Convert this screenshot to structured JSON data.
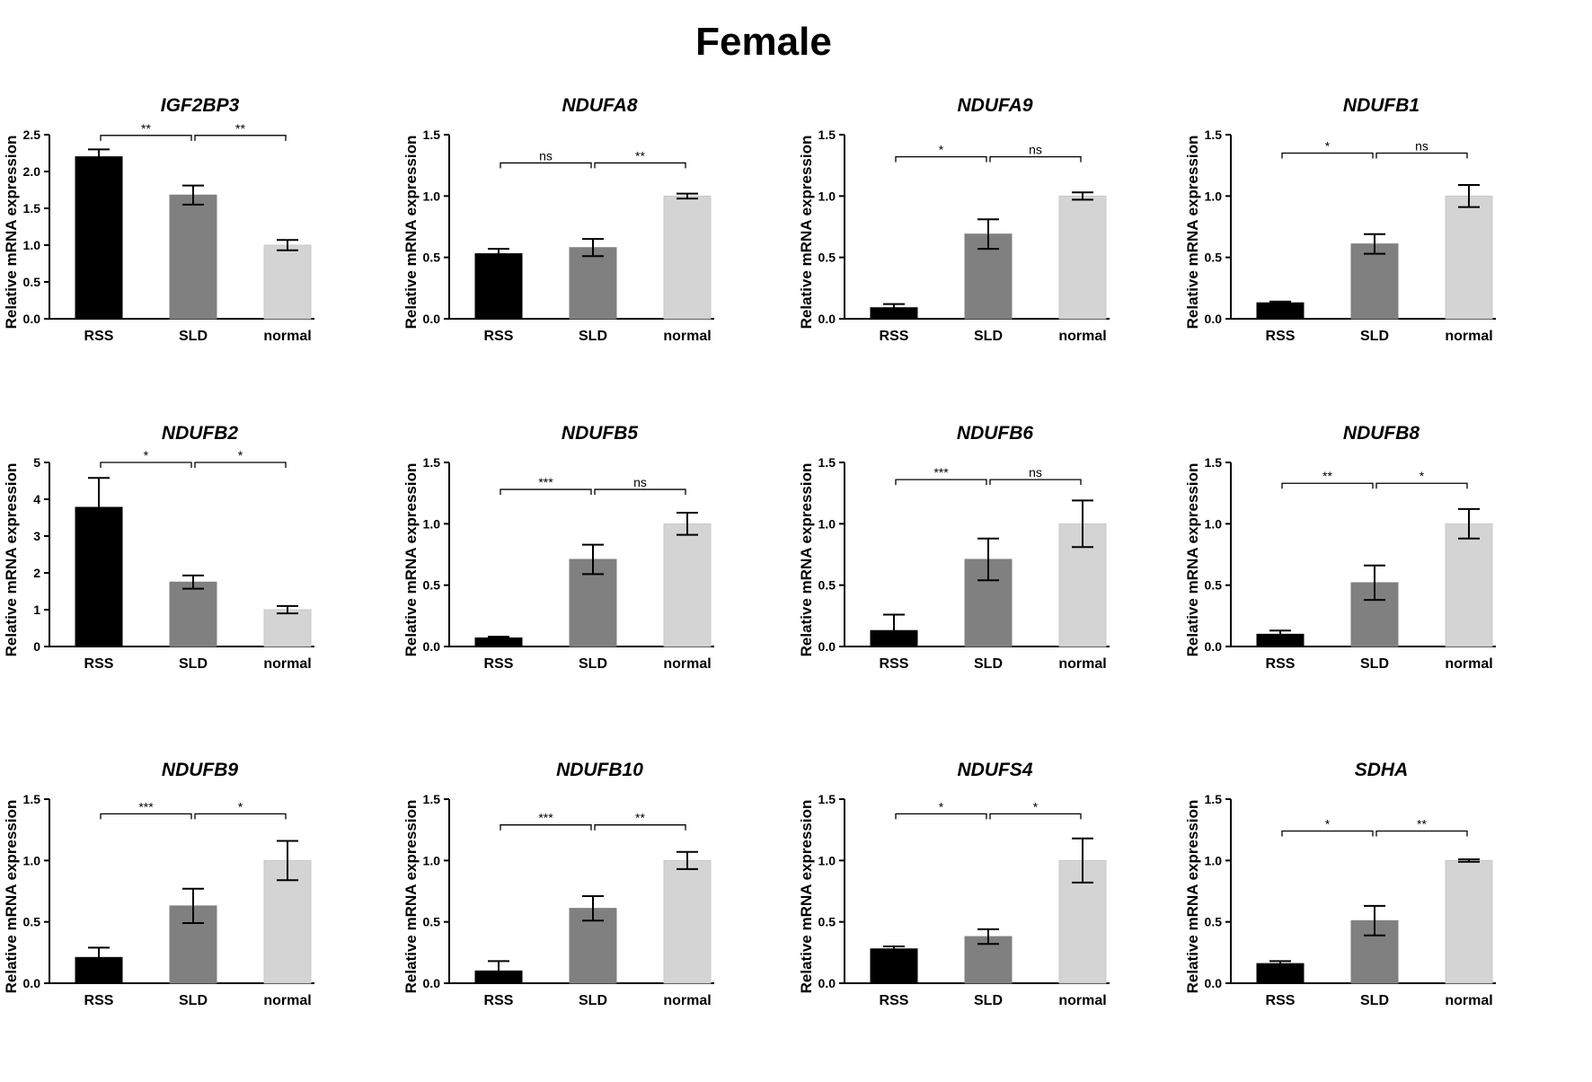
{
  "figure": {
    "title": "Female"
  },
  "chart_data": [
    {
      "type": "bar",
      "title": "IGF2BP3",
      "ylabel": "Relative mRNA expression",
      "categories": [
        "RSS",
        "SLD",
        "normal"
      ],
      "values": [
        2.2,
        1.68,
        1.0
      ],
      "errors": [
        0.1,
        0.13,
        0.07
      ],
      "colors": [
        "#000000",
        "#808080",
        "#d4d4d4"
      ],
      "ylim": [
        0,
        2.5
      ],
      "yticks": [
        "0.0",
        "0.5",
        "1.0",
        "1.5",
        "2.0",
        "2.5"
      ],
      "ytick_values": [
        0,
        0.5,
        1.0,
        1.5,
        2.0,
        2.5
      ],
      "significance": [
        {
          "from": 0,
          "to": 1,
          "label": "**",
          "y": 2.49
        },
        {
          "from": 1,
          "to": 2,
          "label": "**",
          "y": 2.49
        }
      ]
    },
    {
      "type": "bar",
      "title": "NDUFA8",
      "ylabel": "Relative mRNA expression",
      "categories": [
        "RSS",
        "SLD",
        "normal"
      ],
      "values": [
        0.53,
        0.58,
        1.0
      ],
      "errors": [
        0.04,
        0.07,
        0.02
      ],
      "colors": [
        "#000000",
        "#808080",
        "#d4d4d4"
      ],
      "ylim": [
        0,
        1.5
      ],
      "yticks": [
        "0.0",
        "0.5",
        "1.0",
        "1.5"
      ],
      "ytick_values": [
        0,
        0.5,
        1.0,
        1.5
      ],
      "significance": [
        {
          "from": 0,
          "to": 1,
          "label": "ns",
          "y": 1.27
        },
        {
          "from": 1,
          "to": 2,
          "label": "**",
          "y": 1.27
        }
      ]
    },
    {
      "type": "bar",
      "title": "NDUFA9",
      "ylabel": "Relative mRNA expression",
      "categories": [
        "RSS",
        "SLD",
        "normal"
      ],
      "values": [
        0.09,
        0.69,
        1.0
      ],
      "errors": [
        0.03,
        0.12,
        0.03
      ],
      "colors": [
        "#000000",
        "#808080",
        "#d4d4d4"
      ],
      "ylim": [
        0,
        1.5
      ],
      "yticks": [
        "0.0",
        "0.5",
        "1.0",
        "1.5"
      ],
      "ytick_values": [
        0,
        0.5,
        1.0,
        1.5
      ],
      "significance": [
        {
          "from": 0,
          "to": 1,
          "label": "*",
          "y": 1.32
        },
        {
          "from": 1,
          "to": 2,
          "label": "ns",
          "y": 1.32
        }
      ]
    },
    {
      "type": "bar",
      "title": "NDUFB1",
      "ylabel": "Relative mRNA expression",
      "categories": [
        "RSS",
        "SLD",
        "normal"
      ],
      "values": [
        0.13,
        0.61,
        1.0
      ],
      "errors": [
        0.01,
        0.08,
        0.09
      ],
      "colors": [
        "#000000",
        "#808080",
        "#d4d4d4"
      ],
      "ylim": [
        0,
        1.5
      ],
      "yticks": [
        "0.0",
        "0.5",
        "1.0",
        "1.5"
      ],
      "ytick_values": [
        0,
        0.5,
        1.0,
        1.5
      ],
      "significance": [
        {
          "from": 0,
          "to": 1,
          "label": "*",
          "y": 1.35
        },
        {
          "from": 1,
          "to": 2,
          "label": "ns",
          "y": 1.35
        }
      ]
    },
    {
      "type": "bar",
      "title": "NDUFB2",
      "ylabel": "Relative mRNA expression",
      "categories": [
        "RSS",
        "SLD",
        "normal"
      ],
      "values": [
        3.78,
        1.75,
        1.0
      ],
      "errors": [
        0.8,
        0.18,
        0.1
      ],
      "colors": [
        "#000000",
        "#808080",
        "#d4d4d4"
      ],
      "ylim": [
        0,
        5
      ],
      "yticks": [
        "0",
        "1",
        "2",
        "3",
        "4",
        "5"
      ],
      "ytick_values": [
        0,
        1,
        2,
        3,
        4,
        5
      ],
      "significance": [
        {
          "from": 0,
          "to": 1,
          "label": "*",
          "y": 5.0
        },
        {
          "from": 1,
          "to": 2,
          "label": "*",
          "y": 5.0
        }
      ]
    },
    {
      "type": "bar",
      "title": "NDUFB5",
      "ylabel": "Relative mRNA expression",
      "categories": [
        "RSS",
        "SLD",
        "normal"
      ],
      "values": [
        0.07,
        0.71,
        1.0
      ],
      "errors": [
        0.01,
        0.12,
        0.09
      ],
      "colors": [
        "#000000",
        "#808080",
        "#d4d4d4"
      ],
      "ylim": [
        0,
        1.5
      ],
      "yticks": [
        "0.0",
        "0.5",
        "1.0",
        "1.5"
      ],
      "ytick_values": [
        0,
        0.5,
        1.0,
        1.5
      ],
      "significance": [
        {
          "from": 0,
          "to": 1,
          "label": "***",
          "y": 1.28
        },
        {
          "from": 1,
          "to": 2,
          "label": "ns",
          "y": 1.28
        }
      ]
    },
    {
      "type": "bar",
      "title": "NDUFB6",
      "ylabel": "Relative mRNA expression",
      "categories": [
        "RSS",
        "SLD",
        "normal"
      ],
      "values": [
        0.13,
        0.71,
        1.0
      ],
      "errors": [
        0.13,
        0.17,
        0.19
      ],
      "colors": [
        "#000000",
        "#808080",
        "#d4d4d4"
      ],
      "ylim": [
        0,
        1.5
      ],
      "yticks": [
        "0.0",
        "0.5",
        "1.0",
        "1.5"
      ],
      "ytick_values": [
        0,
        0.5,
        1.0,
        1.5
      ],
      "significance": [
        {
          "from": 0,
          "to": 1,
          "label": "***",
          "y": 1.36
        },
        {
          "from": 1,
          "to": 2,
          "label": "ns",
          "y": 1.36
        }
      ]
    },
    {
      "type": "bar",
      "title": "NDUFB8",
      "ylabel": "Relative mRNA expression",
      "categories": [
        "RSS",
        "SLD",
        "normal"
      ],
      "values": [
        0.1,
        0.52,
        1.0
      ],
      "errors": [
        0.03,
        0.14,
        0.12
      ],
      "colors": [
        "#000000",
        "#808080",
        "#d4d4d4"
      ],
      "ylim": [
        0,
        1.5
      ],
      "yticks": [
        "0.0",
        "0.5",
        "1.0",
        "1.5"
      ],
      "ytick_values": [
        0,
        0.5,
        1.0,
        1.5
      ],
      "significance": [
        {
          "from": 0,
          "to": 1,
          "label": "**",
          "y": 1.33
        },
        {
          "from": 1,
          "to": 2,
          "label": "*",
          "y": 1.33
        }
      ]
    },
    {
      "type": "bar",
      "title": "NDUFB9",
      "ylabel": "Relative mRNA expression",
      "categories": [
        "RSS",
        "SLD",
        "normal"
      ],
      "values": [
        0.21,
        0.63,
        1.0
      ],
      "errors": [
        0.08,
        0.14,
        0.16
      ],
      "colors": [
        "#000000",
        "#808080",
        "#d4d4d4"
      ],
      "ylim": [
        0,
        1.5
      ],
      "yticks": [
        "0.0",
        "0.5",
        "1.0",
        "1.5"
      ],
      "ytick_values": [
        0,
        0.5,
        1.0,
        1.5
      ],
      "significance": [
        {
          "from": 0,
          "to": 1,
          "label": "***",
          "y": 1.38
        },
        {
          "from": 1,
          "to": 2,
          "label": "*",
          "y": 1.38
        }
      ]
    },
    {
      "type": "bar",
      "title": "NDUFB10",
      "ylabel": "Relative mRNA expression",
      "categories": [
        "RSS",
        "SLD",
        "normal"
      ],
      "values": [
        0.1,
        0.61,
        1.0
      ],
      "errors": [
        0.08,
        0.1,
        0.07
      ],
      "colors": [
        "#000000",
        "#808080",
        "#d4d4d4"
      ],
      "ylim": [
        0,
        1.5
      ],
      "yticks": [
        "0.0",
        "0.5",
        "1.0",
        "1.5"
      ],
      "ytick_values": [
        0,
        0.5,
        1.0,
        1.5
      ],
      "significance": [
        {
          "from": 0,
          "to": 1,
          "label": "***",
          "y": 1.29
        },
        {
          "from": 1,
          "to": 2,
          "label": "**",
          "y": 1.29
        }
      ]
    },
    {
      "type": "bar",
      "title": "NDUFS4",
      "ylabel": "Relative mRNA expression",
      "categories": [
        "RSS",
        "SLD",
        "normal"
      ],
      "values": [
        0.28,
        0.38,
        1.0
      ],
      "errors": [
        0.02,
        0.06,
        0.18
      ],
      "colors": [
        "#000000",
        "#808080",
        "#d4d4d4"
      ],
      "ylim": [
        0,
        1.5
      ],
      "yticks": [
        "0.0",
        "0.5",
        "1.0",
        "1.5"
      ],
      "ytick_values": [
        0,
        0.5,
        1.0,
        1.5
      ],
      "significance": [
        {
          "from": 0,
          "to": 1,
          "label": "*",
          "y": 1.38
        },
        {
          "from": 1,
          "to": 2,
          "label": "*",
          "y": 1.38
        }
      ]
    },
    {
      "type": "bar",
      "title": "SDHA",
      "ylabel": "Relative mRNA expression",
      "categories": [
        "RSS",
        "SLD",
        "normal"
      ],
      "values": [
        0.16,
        0.51,
        1.0
      ],
      "errors": [
        0.02,
        0.12,
        0.01
      ],
      "colors": [
        "#000000",
        "#808080",
        "#d4d4d4"
      ],
      "ylim": [
        0,
        1.5
      ],
      "yticks": [
        "0.0",
        "0.5",
        "1.0",
        "1.5"
      ],
      "ytick_values": [
        0,
        0.5,
        1.0,
        1.5
      ],
      "significance": [
        {
          "from": 0,
          "to": 1,
          "label": "*",
          "y": 1.24
        },
        {
          "from": 1,
          "to": 2,
          "label": "**",
          "y": 1.24
        }
      ]
    }
  ]
}
